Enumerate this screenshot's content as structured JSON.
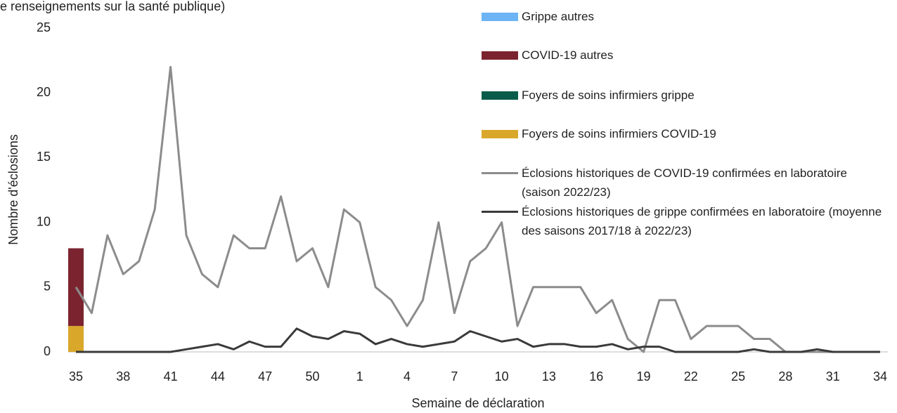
{
  "chart_data": {
    "type": "bar",
    "title": "e renseignements sur la santé publique)",
    "x_label": "Semaine de déclaration",
    "y_label": "Nombre d'éclosions",
    "categories": [
      "35",
      null,
      null,
      "38",
      null,
      null,
      "41",
      null,
      null,
      "44",
      null,
      null,
      "47",
      null,
      null,
      "50",
      null,
      null,
      "1",
      null,
      null,
      "4",
      null,
      null,
      "7",
      null,
      null,
      "10",
      null,
      null,
      "13",
      null,
      null,
      "16",
      null,
      null,
      "19",
      null,
      null,
      "22",
      null,
      null,
      "25",
      null,
      null,
      "28",
      null,
      null,
      "31",
      null,
      null,
      "34"
    ],
    "ylim": [
      0,
      25
    ],
    "yticks": [
      0,
      5,
      10,
      15,
      20,
      25
    ],
    "stacked": true,
    "series": [
      {
        "name": "Grippe autres",
        "type": "bar",
        "color": "#6cb4f5",
        "values": [
          0,
          0,
          0,
          0,
          0,
          0,
          0,
          0,
          0,
          0,
          0,
          0,
          0,
          0,
          0,
          0,
          0,
          0,
          0,
          0,
          0,
          0,
          0,
          0,
          0,
          0,
          0,
          0,
          0,
          0,
          0,
          0,
          0,
          0,
          0,
          0,
          0,
          0,
          0,
          0,
          0,
          0,
          0,
          0,
          0,
          0,
          0,
          0,
          0,
          0,
          0,
          0
        ]
      },
      {
        "name": "COVID-19 autres",
        "type": "bar",
        "color": "#7b2430",
        "values": [
          6,
          0,
          0,
          0,
          0,
          0,
          0,
          0,
          0,
          0,
          0,
          0,
          0,
          0,
          0,
          0,
          0,
          0,
          0,
          0,
          0,
          0,
          0,
          0,
          0,
          0,
          0,
          0,
          0,
          0,
          0,
          0,
          0,
          0,
          0,
          0,
          0,
          0,
          0,
          0,
          0,
          0,
          0,
          0,
          0,
          0,
          0,
          0,
          0,
          0,
          0,
          0
        ]
      },
      {
        "name": "Foyers de soins infirmiers grippe",
        "type": "bar",
        "color": "#0a5c4a",
        "values": [
          0,
          0,
          0,
          0,
          0,
          0,
          0,
          0,
          0,
          0,
          0,
          0,
          0,
          0,
          0,
          0,
          0,
          0,
          0,
          0,
          0,
          0,
          0,
          0,
          0,
          0,
          0,
          0,
          0,
          0,
          0,
          0,
          0,
          0,
          0,
          0,
          0,
          0,
          0,
          0,
          0,
          0,
          0,
          0,
          0,
          0,
          0,
          0,
          0,
          0,
          0,
          0
        ]
      },
      {
        "name": "Foyers de soins infirmiers COVID-19",
        "type": "bar",
        "color": "#d9a72a",
        "values": [
          2,
          0,
          0,
          0,
          0,
          0,
          0,
          0,
          0,
          0,
          0,
          0,
          0,
          0,
          0,
          0,
          0,
          0,
          0,
          0,
          0,
          0,
          0,
          0,
          0,
          0,
          0,
          0,
          0,
          0,
          0,
          0,
          0,
          0,
          0,
          0,
          0,
          0,
          0,
          0,
          0,
          0,
          0,
          0,
          0,
          0,
          0,
          0,
          0,
          0,
          0,
          0
        ]
      },
      {
        "name": "Éclosions historiques de COVID-19 confirmées en laboratoire (saison 2022/23)",
        "type": "line",
        "color": "#8c8c8c",
        "values": [
          5,
          3,
          9,
          6,
          7,
          11,
          22,
          9,
          6,
          5,
          9,
          8,
          8,
          12,
          7,
          8,
          5,
          11,
          10,
          5,
          4,
          2,
          4,
          10,
          3,
          7,
          8,
          10,
          2,
          5,
          5,
          5,
          5,
          3,
          4,
          1,
          0,
          4,
          4,
          1,
          2,
          2,
          2,
          1,
          1,
          0,
          0,
          0,
          0,
          0,
          0,
          0
        ]
      },
      {
        "name": "Éclosions historiques de grippe confirmées en laboratoire (moyenne des saisons 2017/18 à 2022/23)",
        "type": "line",
        "color": "#3a3a3a",
        "values": [
          0,
          0,
          0,
          0,
          0,
          0,
          0,
          0.2,
          0.4,
          0.6,
          0.2,
          0.8,
          0.4,
          0.4,
          1.8,
          1.2,
          1.0,
          1.6,
          1.4,
          0.6,
          1.0,
          0.6,
          0.4,
          0.6,
          0.8,
          1.6,
          1.2,
          0.8,
          1.0,
          0.4,
          0.6,
          0.6,
          0.4,
          0.4,
          0.6,
          0.2,
          0.4,
          0.4,
          0,
          0,
          0,
          0,
          0,
          0.2,
          0,
          0,
          0,
          0.2,
          0,
          0,
          0,
          0
        ]
      }
    ]
  }
}
